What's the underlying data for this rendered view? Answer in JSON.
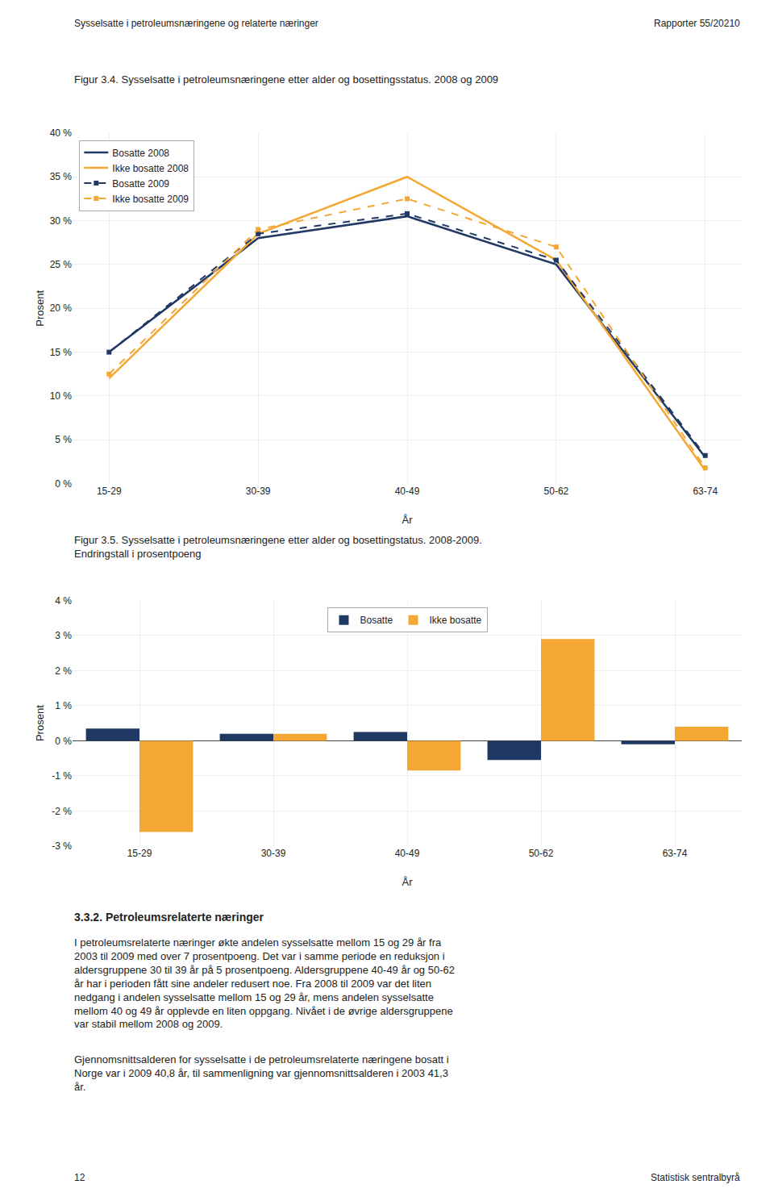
{
  "chart_data": [
    {
      "type": "line",
      "title": "Figur 3.4. Sysselsatte i petroleumsnæringene etter alder og bosettingsstatus. 2008 og 2009",
      "xlabel": "År",
      "ylabel": "Prosent",
      "categories": [
        "15-29",
        "30-39",
        "40-49",
        "50-62",
        "63-74"
      ],
      "series": [
        {
          "name": "Bosatte 2008",
          "color": "#1F3864",
          "line_style": "solid",
          "marker": "none",
          "values": [
            15.0,
            28.0,
            30.5,
            25.0,
            3.0
          ]
        },
        {
          "name": "Ikke bosatte 2008",
          "color": "#F4A732",
          "line_style": "solid",
          "marker": "none",
          "values": [
            12.0,
            28.5,
            35.0,
            25.5,
            1.5
          ]
        },
        {
          "name": "Bosatte 2009",
          "color": "#1F3864",
          "line_style": "dashed",
          "marker": "square",
          "values": [
            15.0,
            28.5,
            30.8,
            25.5,
            3.2
          ]
        },
        {
          "name": "Ikke bosatte 2009",
          "color": "#F4A732",
          "line_style": "dashed",
          "marker": "square",
          "values": [
            12.5,
            29.0,
            32.5,
            27.0,
            1.8
          ]
        }
      ],
      "ylim": [
        0,
        40
      ],
      "yticks": [
        {
          "value": 0,
          "label": "0 %"
        },
        {
          "value": 5,
          "label": "5 %"
        },
        {
          "value": 10,
          "label": "10 %"
        },
        {
          "value": 15,
          "label": "15 %"
        },
        {
          "value": 20,
          "label": "20 %"
        },
        {
          "value": 25,
          "label": "25 %"
        },
        {
          "value": 30,
          "label": "30 %"
        },
        {
          "value": 35,
          "label": "35 %"
        },
        {
          "value": 40,
          "label": "40 %"
        }
      ],
      "grid": true,
      "legend": "top left",
      "annotations": [
        "Sysselsatte i petroleumsnæringene og relaterte næringer",
        "Rapporter 55/20210"
      ]
    },
    {
      "type": "bar",
      "title": "Figur 3.5. Sysselsatte i petroleumsnæringene etter alder og bosettingstatus. 2008-2009.\nEndringstall i prosentpoeng",
      "xlabel": "År",
      "ylabel": "Prosent",
      "categories": [
        "15-29",
        "30-39",
        "40-49",
        "50-62",
        "63-74"
      ],
      "series": [
        {
          "name": "Bosatte",
          "color": "#1F3864",
          "values": [
            0.35,
            0.2,
            0.25,
            -0.55,
            -0.1
          ]
        },
        {
          "name": "Ikke bosatte",
          "color": "#F4A732",
          "values": [
            -2.6,
            0.2,
            -0.85,
            2.9,
            0.4
          ]
        }
      ],
      "ylim": [
        -3,
        4
      ],
      "yticks": [
        {
          "value": -3,
          "label": "-3 %"
        },
        {
          "value": -2,
          "label": "-2 %"
        },
        {
          "value": -1,
          "label": "-1 %"
        },
        {
          "value": 0,
          "label": "0 %"
        },
        {
          "value": 1,
          "label": "1 %"
        },
        {
          "value": 2,
          "label": "2 %"
        },
        {
          "value": 3,
          "label": "3 %"
        },
        {
          "value": 4,
          "label": "4 %"
        }
      ],
      "grid": true,
      "legend": "top",
      "annotations": [
        "3.3.2. Petroleumsrelaterte næringer",
        "I petroleumsrelaterte næringer økte andelen sysselsatte mellom 15 og 29 år fra\n2003 til 2009 med over 7 prosentpoeng. Det var i samme periode en reduksjon i\naldersgruppene 30 til 39 år på 5 prosentpoeng. Aldersgruppene 40-49 år og 50-62\når har i perioden fått sine andeler redusert noe. Fra 2008 til 2009 var det liten\nnedgang i andelen sysselsatte mellom 15 og 29 år, mens andelen sysselsatte\nmellom 40 og 49 år opplevde en liten oppgang. Nivået i de øvrige aldersgruppene\nvar stabil mellom 2008 og 2009.",
        "Gjennomsnittsalderen for sysselsatte i de petroleumsrelaterte næringene bosatt i\nNorge var i 2009 40,8 år, til sammenligning var gjennomsnittsalderen i 2003 41,3\når.",
        "12",
        "Statistisk sentralbyrå"
      ]
    }
  ]
}
